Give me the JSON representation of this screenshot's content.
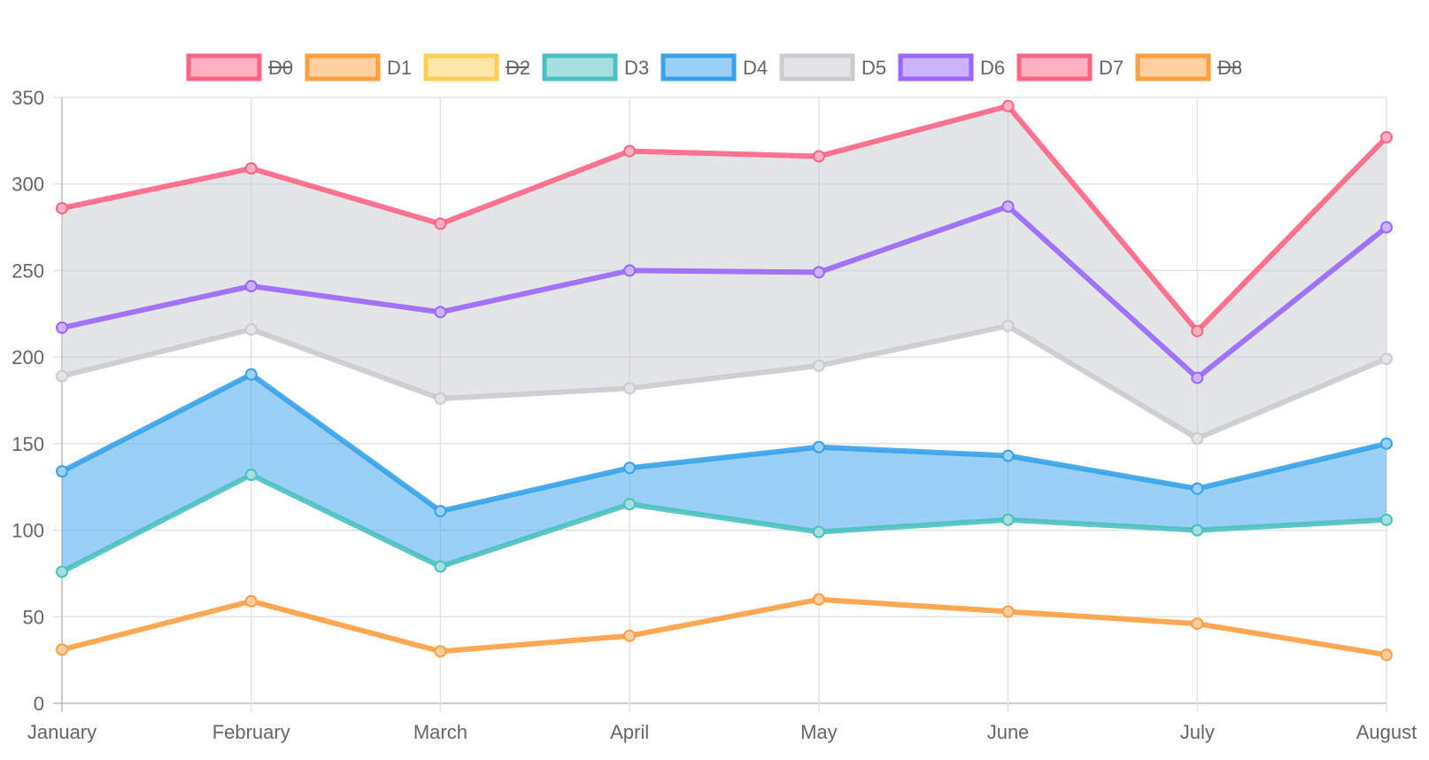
{
  "chart_data": {
    "type": "line",
    "categories": [
      "January",
      "February",
      "March",
      "April",
      "May",
      "June",
      "July",
      "August"
    ],
    "ylim": [
      0,
      350
    ],
    "yticks": [
      0,
      50,
      100,
      150,
      200,
      250,
      300,
      350
    ],
    "grid": true,
    "legend_position": "top",
    "series": [
      {
        "name": "D0",
        "color": "#ff6384",
        "fill": "#ffb1c1",
        "hidden": true,
        "values": [
          null,
          null,
          null,
          null,
          null,
          null,
          null,
          null
        ]
      },
      {
        "name": "D1",
        "color": "#ff9f40",
        "fill": "#ffcf9f",
        "hidden": false,
        "values": [
          31,
          59,
          30,
          39,
          60,
          53,
          46,
          28
        ]
      },
      {
        "name": "D2",
        "color": "#ffcd56",
        "fill": "#ffe6aa",
        "hidden": true,
        "values": [
          null,
          null,
          null,
          null,
          null,
          null,
          null,
          null
        ]
      },
      {
        "name": "D3",
        "color": "#4bc0c0",
        "fill": "#a5dfdf",
        "hidden": false,
        "values": [
          76,
          132,
          79,
          115,
          99,
          106,
          100,
          106
        ]
      },
      {
        "name": "D4",
        "color": "#36a2eb",
        "fill": "#9ad0f5",
        "hidden": false,
        "values": [
          134,
          190,
          111,
          136,
          148,
          143,
          124,
          150
        ]
      },
      {
        "name": "D5",
        "color": "#c9cbcf",
        "fill": "#e4e5e7",
        "hidden": false,
        "values": [
          189,
          216,
          176,
          182,
          195,
          218,
          153,
          199
        ]
      },
      {
        "name": "D6",
        "color": "#9966ff",
        "fill": "#ccb2ff",
        "hidden": false,
        "values": [
          217,
          241,
          226,
          250,
          249,
          287,
          188,
          275
        ]
      },
      {
        "name": "D7",
        "color": "#ff6384",
        "fill": "#ffb1c1",
        "hidden": false,
        "values": [
          286,
          309,
          277,
          319,
          316,
          345,
          215,
          327
        ]
      },
      {
        "name": "D8",
        "color": "#ff9f40",
        "fill": "#ffcf9f",
        "hidden": true,
        "values": [
          null,
          null,
          null,
          null,
          null,
          null,
          null,
          null
        ]
      }
    ],
    "fills": [
      {
        "from": "D3",
        "to": "D4",
        "color": "#36a2eb",
        "opacity": 0.5
      },
      {
        "from": "D5",
        "to": "D7",
        "color": "#c9cbcf",
        "opacity": 0.5
      }
    ]
  }
}
